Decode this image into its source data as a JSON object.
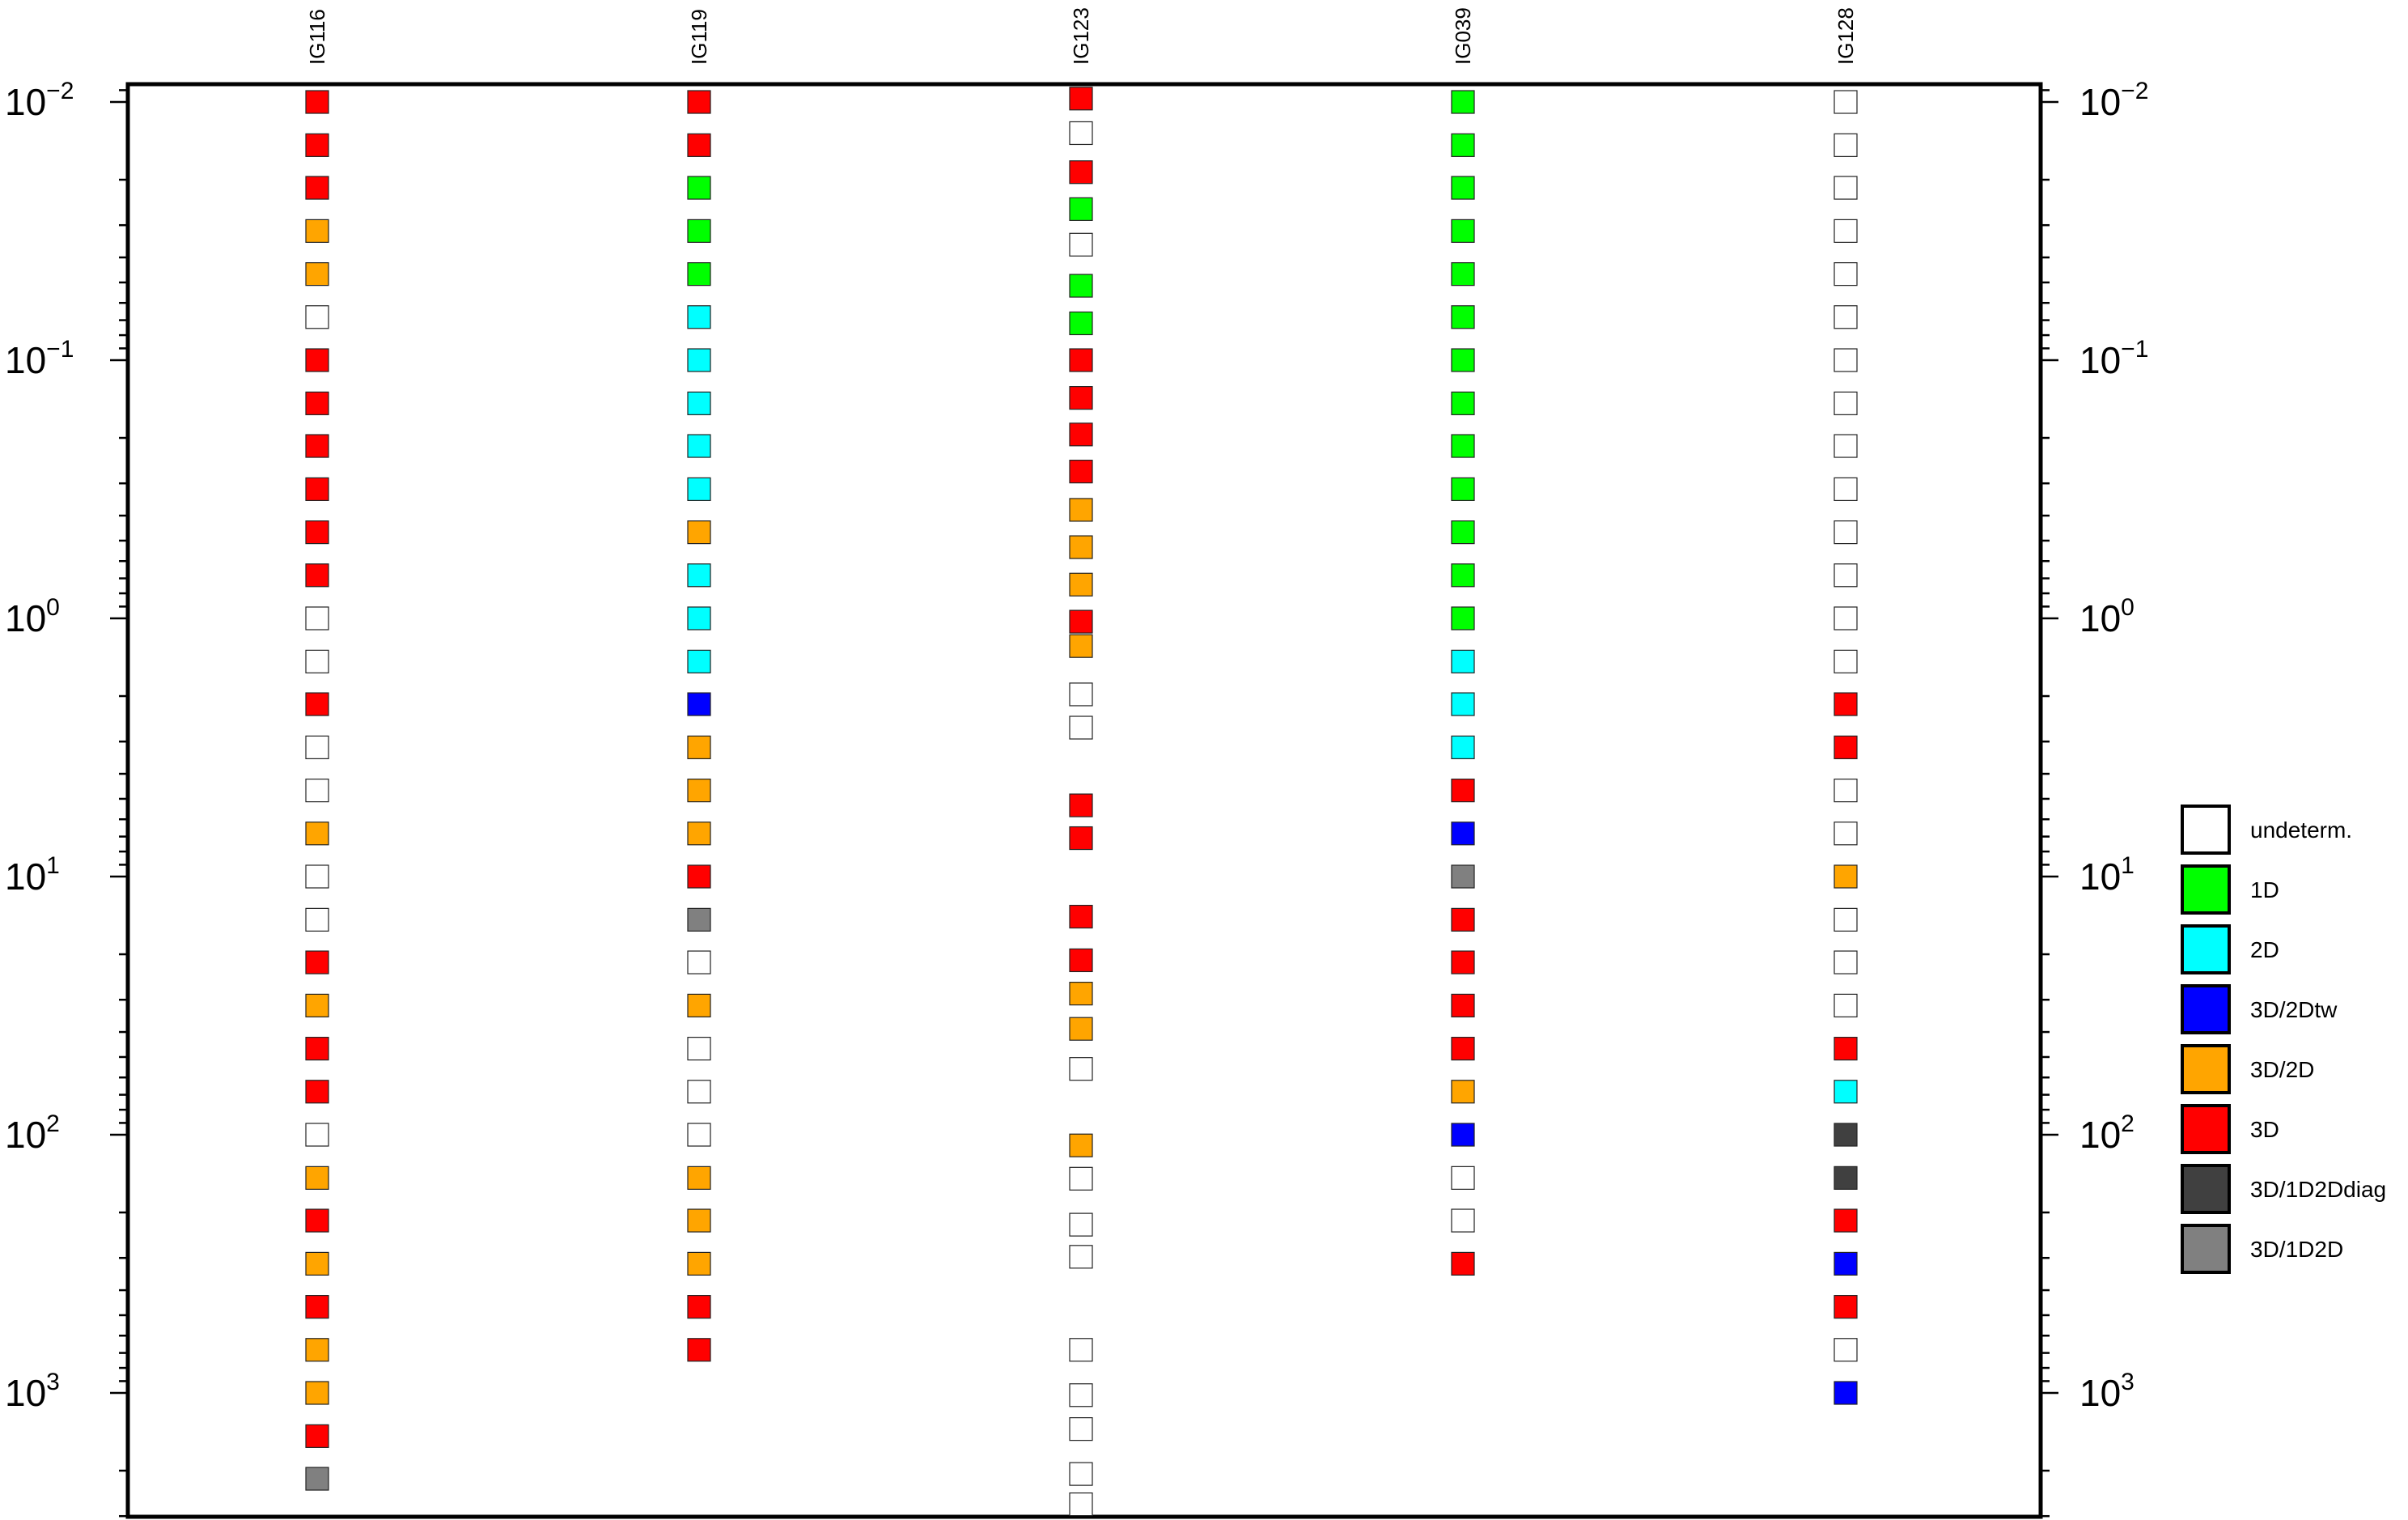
{
  "chart_data": {
    "type": "scatter",
    "title": "",
    "xlabel": "",
    "ylabel": "",
    "y_axis": {
      "scale": "log",
      "reversed": true,
      "ylim": [
        0.0085,
        4600
      ],
      "ticks": [
        {
          "value": 0.01,
          "base": "10",
          "exp": "−2"
        },
        {
          "value": 0.1,
          "base": "10",
          "exp": "−1"
        },
        {
          "value": 1,
          "base": "10",
          "exp": "0"
        },
        {
          "value": 10,
          "base": "10",
          "exp": "1"
        },
        {
          "value": 100,
          "base": "10",
          "exp": "2"
        },
        {
          "value": 1000,
          "base": "10",
          "exp": "3"
        }
      ]
    },
    "legend": {
      "position": "right",
      "entries": [
        {
          "key": "U",
          "label": "undeterm.",
          "color": "#ffffff"
        },
        {
          "key": "G",
          "label": "1D",
          "color": "#00ff00"
        },
        {
          "key": "C",
          "label": "2D",
          "color": "#00ffff"
        },
        {
          "key": "B",
          "label": "3D/2Dtw",
          "color": "#0000ff"
        },
        {
          "key": "O",
          "label": "3D/2D",
          "color": "#ffa500"
        },
        {
          "key": "R",
          "label": "3D",
          "color": "#ff0000"
        },
        {
          "key": "D",
          "label": "3D/1D2Ddiag",
          "color": "#404040"
        },
        {
          "key": "M",
          "label": "3D/1D2D",
          "color": "#808080"
        }
      ]
    },
    "series": [
      {
        "name": "IG116",
        "periods": [
          0.01,
          0.0147,
          0.0215,
          0.0316,
          0.0464,
          0.0681,
          0.1,
          0.147,
          0.215,
          0.316,
          0.464,
          0.681,
          1,
          1.47,
          2.15,
          3.16,
          4.64,
          6.81,
          10,
          14.7,
          21.5,
          31.6,
          46.4,
          68.1,
          100,
          147,
          215,
          316,
          464,
          681,
          1000,
          1470,
          2150
        ],
        "classes": [
          "R",
          "R",
          "R",
          "O",
          "O",
          "U",
          "R",
          "R",
          "R",
          "R",
          "R",
          "R",
          "U",
          "U",
          "R",
          "U",
          "U",
          "O",
          "U",
          "U",
          "R",
          "O",
          "R",
          "R",
          "U",
          "O",
          "R",
          "O",
          "R",
          "O",
          "O",
          "R",
          "M"
        ]
      },
      {
        "name": "IG119",
        "periods": [
          0.01,
          0.0147,
          0.0215,
          0.0316,
          0.0464,
          0.0681,
          0.1,
          0.147,
          0.215,
          0.316,
          0.464,
          0.681,
          1,
          1.47,
          2.15,
          3.16,
          4.64,
          6.81,
          10,
          14.7,
          21.5,
          31.6,
          46.4,
          68.1,
          100,
          147,
          215,
          316,
          464,
          681
        ],
        "classes": [
          "R",
          "R",
          "G",
          "G",
          "G",
          "C",
          "C",
          "C",
          "C",
          "C",
          "O",
          "C",
          "C",
          "C",
          "B",
          "O",
          "O",
          "O",
          "R",
          "M",
          "U",
          "O",
          "U",
          "U",
          "U",
          "O",
          "O",
          "O",
          "R",
          "R"
        ]
      },
      {
        "name": "IG123",
        "periods": [
          0.0097,
          0.0132,
          0.0187,
          0.026,
          0.0357,
          0.0515,
          0.072,
          0.1,
          0.14,
          0.194,
          0.27,
          0.38,
          0.53,
          0.74,
          1.03,
          1.28,
          1.97,
          2.65,
          5.3,
          7.1,
          14.3,
          21.1,
          28.4,
          38.9,
          55.6,
          110,
          148,
          223,
          297,
          681,
          1020,
          1380,
          2060,
          2700
        ],
        "classes": [
          "R",
          "U",
          "R",
          "G",
          "U",
          "G",
          "G",
          "R",
          "R",
          "R",
          "R",
          "O",
          "O",
          "O",
          "R",
          "O",
          "U",
          "U",
          "R",
          "R",
          "R",
          "R",
          "O",
          "O",
          "U",
          "O",
          "U",
          "U",
          "U",
          "U",
          "U",
          "U",
          "U",
          "U"
        ]
      },
      {
        "name": "IG039",
        "periods": [
          0.01,
          0.0147,
          0.0215,
          0.0316,
          0.0464,
          0.0681,
          0.1,
          0.147,
          0.215,
          0.316,
          0.464,
          0.681,
          1,
          1.47,
          2.15,
          3.16,
          4.64,
          6.81,
          10,
          14.7,
          21.5,
          31.6,
          46.4,
          68.1,
          100,
          147,
          215,
          316
        ],
        "classes": [
          "G",
          "G",
          "G",
          "G",
          "G",
          "G",
          "G",
          "G",
          "G",
          "G",
          "G",
          "G",
          "G",
          "C",
          "C",
          "C",
          "R",
          "B",
          "M",
          "R",
          "R",
          "R",
          "R",
          "O",
          "B",
          "U",
          "U",
          "R"
        ]
      },
      {
        "name": "IG128",
        "periods": [
          0.01,
          0.0147,
          0.0215,
          0.0316,
          0.0464,
          0.0681,
          0.1,
          0.147,
          0.215,
          0.316,
          0.464,
          0.681,
          1,
          1.47,
          2.15,
          3.16,
          4.64,
          6.81,
          10,
          14.7,
          21.5,
          31.6,
          46.4,
          68.1,
          100,
          147,
          215,
          316,
          464,
          681,
          1000
        ],
        "classes": [
          "U",
          "U",
          "U",
          "U",
          "U",
          "U",
          "U",
          "U",
          "U",
          "U",
          "U",
          "U",
          "U",
          "U",
          "R",
          "R",
          "U",
          "U",
          "O",
          "U",
          "U",
          "U",
          "R",
          "C",
          "D",
          "D",
          "R",
          "B",
          "R",
          "U",
          "B"
        ]
      }
    ]
  }
}
